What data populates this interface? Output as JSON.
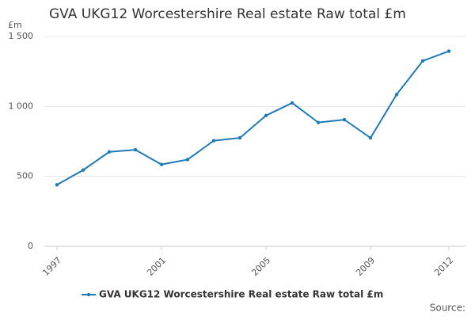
{
  "chart_data": {
    "type": "line",
    "title": "GVA UKG12 Worcestershire Real estate Raw total £m",
    "y_unit": "£m",
    "source": "Source:",
    "x": [
      1997,
      1998,
      1999,
      2000,
      2001,
      2002,
      2003,
      2004,
      2005,
      2006,
      2007,
      2008,
      2009,
      2010,
      2011,
      2012
    ],
    "series": [
      {
        "name": "GVA UKG12 Worcestershire Real estate Raw total £m",
        "color": "#1f7ab8",
        "values": [
          440,
          545,
          675,
          690,
          585,
          620,
          755,
          775,
          935,
          1025,
          885,
          905,
          775,
          1085,
          1325,
          1395
        ]
      }
    ],
    "xlim": [
      1997,
      2012
    ],
    "xticks": [
      1997,
      2001,
      2005,
      2009,
      2012
    ],
    "ylim": [
      0,
      1500
    ],
    "yticks": [
      0,
      500,
      {
        "value": 1000,
        "label": "1 000"
      },
      {
        "value": 1500,
        "label": "1 500"
      }
    ],
    "grid": true,
    "legend": "bottom"
  }
}
